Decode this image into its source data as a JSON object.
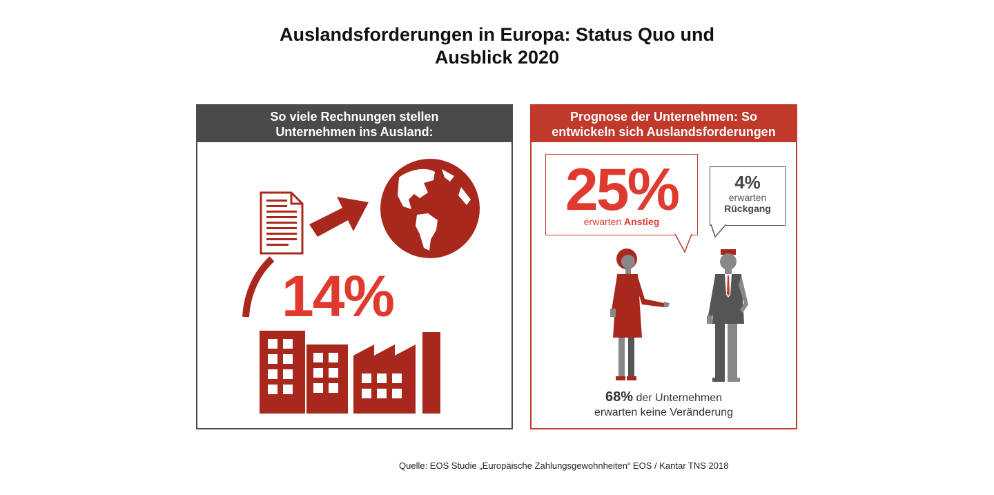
{
  "title": {
    "line1": "Auslandsforderungen in Europa: Status Quo und",
    "line2": "Ausblick 2020"
  },
  "left_panel": {
    "header_line1": "So viele Rechnungen stellen",
    "header_line2": "Unternehmen ins Ausland:",
    "value": "14%",
    "icons": [
      "document-icon",
      "arrow-icon",
      "globe-icon",
      "factory-icon"
    ]
  },
  "right_panel": {
    "header_line1": "Prognose der Unternehmen: So",
    "header_line2": "entwickeln sich Auslandsforderungen",
    "increase": {
      "value": "25%",
      "label_prefix": "erwarten",
      "label_bold": "Anstieg"
    },
    "decrease": {
      "value": "4%",
      "label_line1": "erwarten",
      "label_line2": "Rückgang"
    },
    "no_change": {
      "value": "68%",
      "text_line1": " der Unternehmen",
      "text_line2": "erwarten keine Veränderung"
    }
  },
  "source": "Quelle: EOS Studie „Europäische Zahlungsgewohnheiten“ EOS / Kantar TNS 2018",
  "colors": {
    "red": "#e03a2f",
    "dark_red": "#a8281d",
    "grey": "#4a4a4a"
  }
}
